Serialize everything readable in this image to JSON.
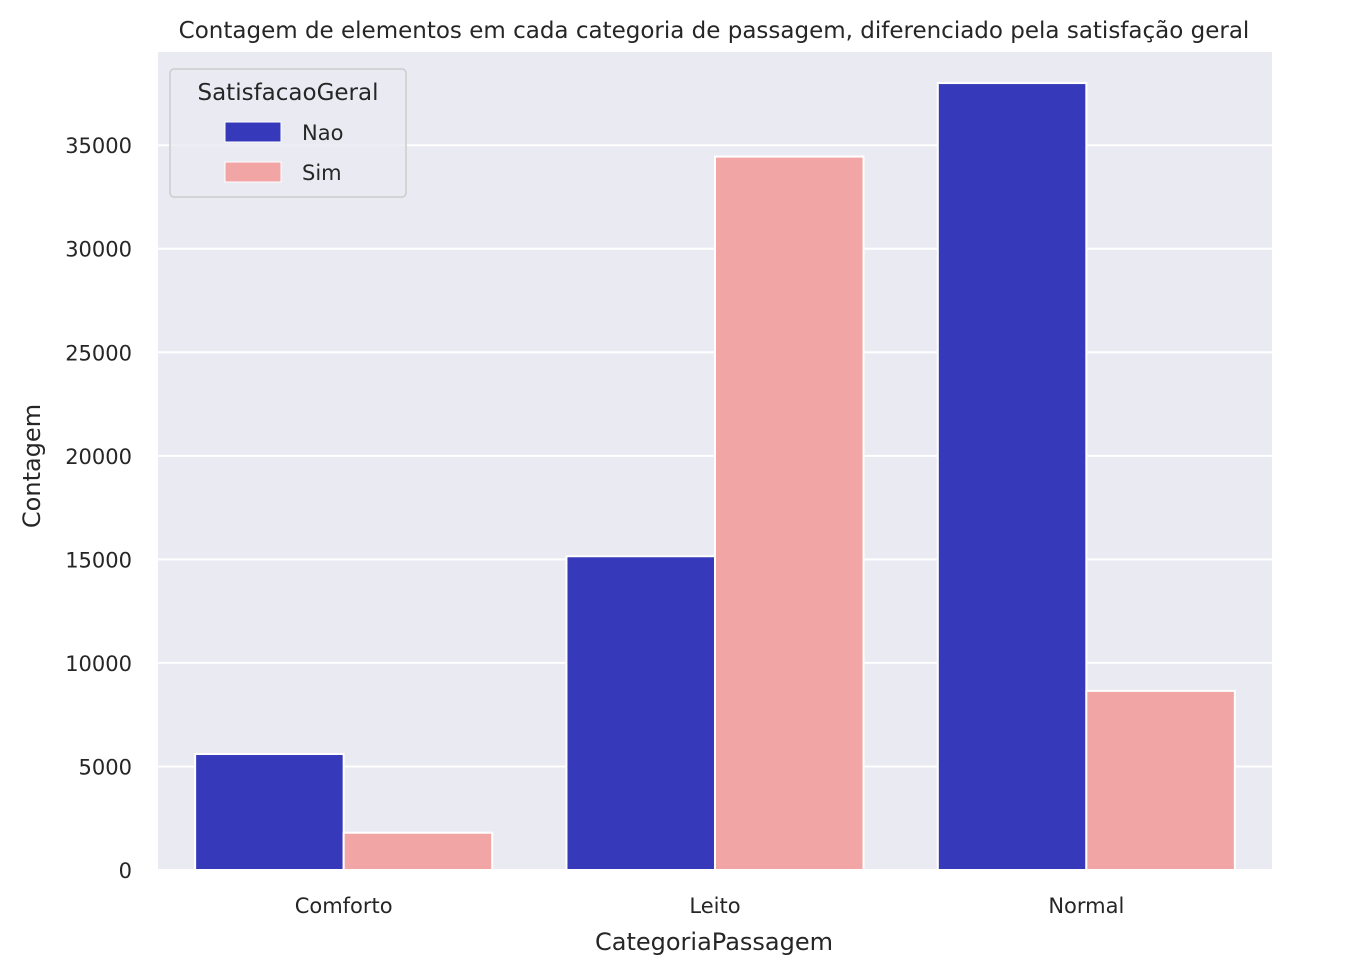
{
  "chart_data": {
    "type": "bar",
    "title": "Contagem de elementos em cada categoria de passagem, diferenciado pela satisfação geral",
    "xlabel": "CategoriaPassagem",
    "ylabel": "Contagem",
    "categories": [
      "Comforto",
      "Leito",
      "Normal"
    ],
    "series": [
      {
        "name": "Nao",
        "color": "#3639BA",
        "values": [
          5600,
          15150,
          38000
        ]
      },
      {
        "name": "Sim",
        "color": "#F2A5A5",
        "values": [
          1800,
          34450,
          8650
        ]
      }
    ],
    "ylim": [
      0,
      39500
    ],
    "yticks": [
      0,
      5000,
      10000,
      15000,
      20000,
      25000,
      30000,
      35000
    ],
    "ytick_labels": [
      "0",
      "5000",
      "10000",
      "15000",
      "20000",
      "25000",
      "30000",
      "35000"
    ],
    "grid": true,
    "plot_background": "#EAEAF2",
    "grid_color": "#FFFFFF",
    "legend": {
      "title": "SatisfacaoGeral",
      "placement": "top-left"
    }
  }
}
